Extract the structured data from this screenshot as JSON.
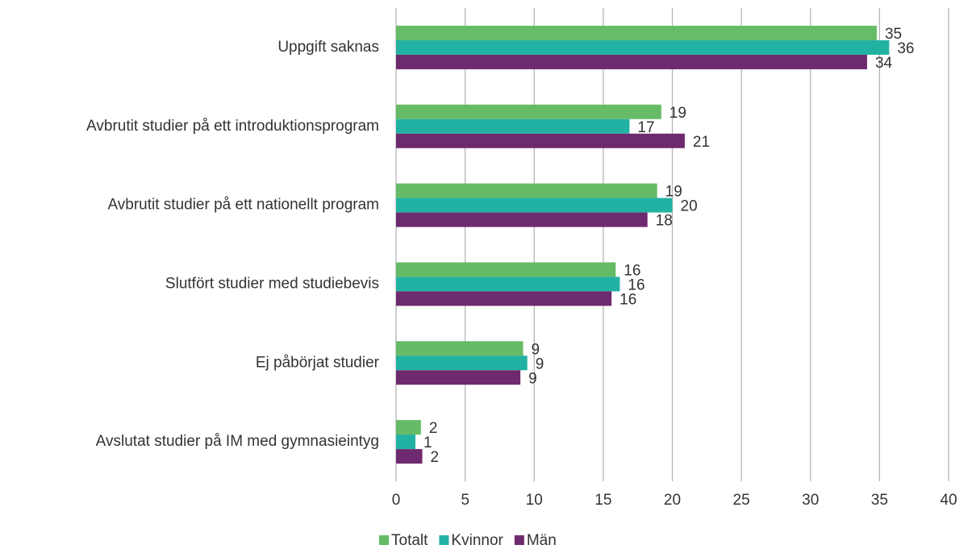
{
  "chart_data": {
    "type": "hbar",
    "categories": [
      "Uppgift saknas",
      "Avbrutit studier på ett introduktionsprogram",
      "Avbrutit studier på ett nationellt program",
      "Slutfört studier med studiebevis",
      "Ej påbörjat studier",
      "Avslutat studier på IM med gymnasieintyg"
    ],
    "series": [
      {
        "name": "Totalt",
        "color": "#66bb66",
        "values": [
          34.8,
          19.2,
          18.9,
          15.9,
          9.2,
          1.8
        ],
        "value_labels": [
          "35",
          "19",
          "19",
          "16",
          "9",
          "2"
        ]
      },
      {
        "name": "Kvinnor",
        "color": "#22b2a4",
        "values": [
          35.7,
          16.9,
          20.0,
          16.2,
          9.5,
          1.4
        ],
        "value_labels": [
          "36",
          "17",
          "20",
          "16",
          "9",
          "1"
        ]
      },
      {
        "name": "Män",
        "color": "#6e2a6e",
        "values": [
          34.1,
          20.9,
          18.2,
          15.6,
          9.0,
          1.9
        ],
        "value_labels": [
          "34",
          "21",
          "18",
          "16",
          "9",
          "2"
        ]
      }
    ],
    "xlim": [
      0,
      40
    ],
    "xticks": [
      0,
      5,
      10,
      15,
      20,
      25,
      30,
      35,
      40
    ],
    "grid": true,
    "legend": "bottom"
  }
}
